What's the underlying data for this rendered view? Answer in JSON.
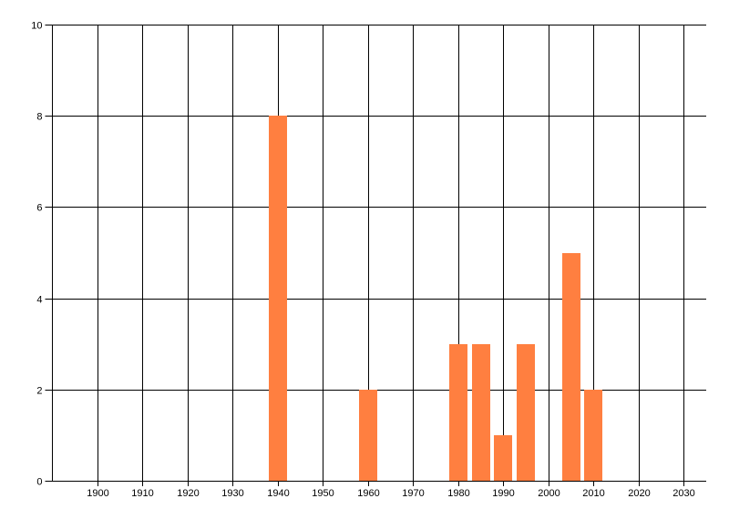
{
  "chart_data": {
    "type": "bar",
    "title": "",
    "xlabel": "",
    "ylabel": "",
    "x": [
      1940,
      1960,
      1980,
      1985,
      1990,
      1995,
      2005,
      2010
    ],
    "values": [
      8,
      2,
      3,
      3,
      1,
      3,
      5,
      2
    ],
    "xlim": [
      1890,
      2035
    ],
    "ylim": [
      0,
      10
    ],
    "x_ticks": [
      "1900",
      "1910",
      "1920",
      "1930",
      "1940",
      "1950",
      "1960",
      "1970",
      "1980",
      "1990",
      "2000",
      "2010",
      "2020",
      "2030"
    ],
    "y_ticks": [
      "0",
      "2",
      "4",
      "6",
      "8",
      "10"
    ],
    "grid": true,
    "legend": "none",
    "bar_color": "#FF7F40",
    "grid_color": "#000000"
  }
}
